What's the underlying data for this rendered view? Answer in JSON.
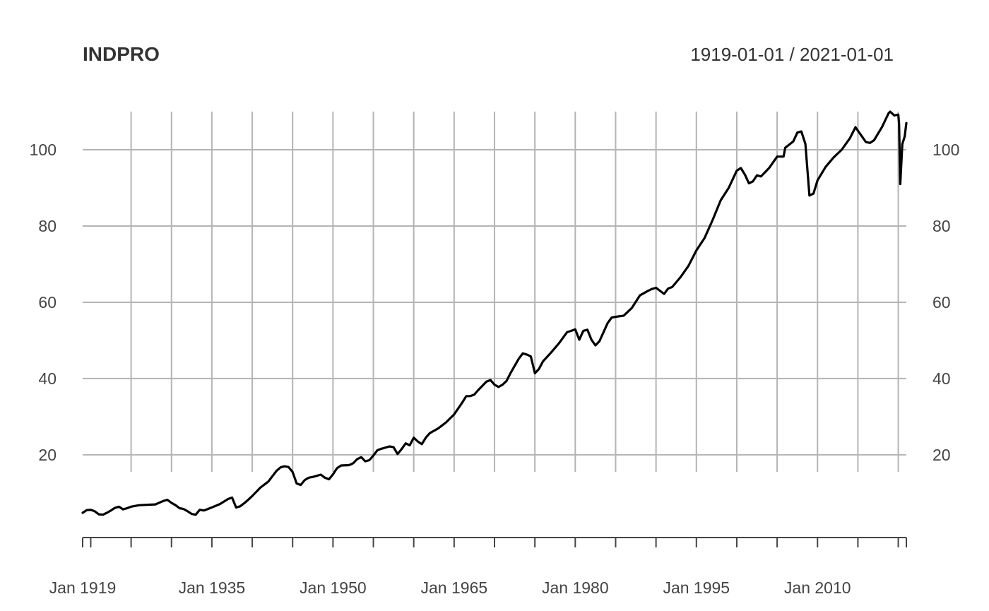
{
  "chart_data": {
    "type": "line",
    "title": "INDPRO",
    "date_range_label": "1919-01-01 / 2021-01-01",
    "x_ticks": [
      {
        "year": 1919,
        "label": "Jan 1919"
      },
      {
        "year": 1935,
        "label": "Jan 1935"
      },
      {
        "year": 1950,
        "label": "Jan 1950"
      },
      {
        "year": 1965,
        "label": "Jan 1965"
      },
      {
        "year": 1980,
        "label": "Jan 1980"
      },
      {
        "year": 1995,
        "label": "Jan 1995"
      },
      {
        "year": 2010,
        "label": "Jan 2010"
      }
    ],
    "x_gridlines": [
      1925,
      1930,
      1935,
      1940,
      1945,
      1950,
      1955,
      1960,
      1965,
      1970,
      1975,
      1980,
      1985,
      1990,
      1995,
      2000,
      2005,
      2010,
      2015,
      2020
    ],
    "x_minor_ticks": [
      1920
    ],
    "xlim": [
      1919,
      2021
    ],
    "y_ticks": [
      20,
      40,
      60,
      80,
      100
    ],
    "ylim": [
      -1.5,
      110
    ],
    "grid": true,
    "series": [
      {
        "points": [
          [
            1919.0,
            4.8
          ],
          [
            1919.5,
            5.5
          ],
          [
            1920.0,
            5.6
          ],
          [
            1920.5,
            5.2
          ],
          [
            1921.0,
            4.4
          ],
          [
            1921.5,
            4.3
          ],
          [
            1922.0,
            4.8
          ],
          [
            1922.5,
            5.4
          ],
          [
            1923.0,
            6.1
          ],
          [
            1923.5,
            6.4
          ],
          [
            1924.0,
            5.7
          ],
          [
            1924.5,
            6.0
          ],
          [
            1925.0,
            6.4
          ],
          [
            1926.0,
            6.8
          ],
          [
            1927.0,
            6.9
          ],
          [
            1928.0,
            7.0
          ],
          [
            1929.0,
            7.9
          ],
          [
            1929.5,
            8.2
          ],
          [
            1930.0,
            7.4
          ],
          [
            1930.5,
            6.8
          ],
          [
            1931.0,
            6.0
          ],
          [
            1931.5,
            5.8
          ],
          [
            1932.0,
            5.2
          ],
          [
            1932.5,
            4.5
          ],
          [
            1933.0,
            4.3
          ],
          [
            1933.5,
            5.6
          ],
          [
            1934.0,
            5.4
          ],
          [
            1934.5,
            5.8
          ],
          [
            1935.0,
            6.2
          ],
          [
            1936.0,
            7.1
          ],
          [
            1937.0,
            8.4
          ],
          [
            1937.5,
            8.8
          ],
          [
            1938.0,
            6.2
          ],
          [
            1938.5,
            6.5
          ],
          [
            1939.0,
            7.3
          ],
          [
            1939.5,
            8.2
          ],
          [
            1940.0,
            9.2
          ],
          [
            1941.0,
            11.4
          ],
          [
            1942.0,
            13.0
          ],
          [
            1943.0,
            15.8
          ],
          [
            1943.5,
            16.7
          ],
          [
            1944.0,
            17.0
          ],
          [
            1944.5,
            16.8
          ],
          [
            1945.0,
            15.5
          ],
          [
            1945.5,
            12.5
          ],
          [
            1946.0,
            12.1
          ],
          [
            1946.5,
            13.4
          ],
          [
            1947.0,
            14.0
          ],
          [
            1947.5,
            14.2
          ],
          [
            1948.0,
            14.5
          ],
          [
            1948.5,
            14.8
          ],
          [
            1949.0,
            14.0
          ],
          [
            1949.5,
            13.6
          ],
          [
            1950.0,
            14.9
          ],
          [
            1950.5,
            16.5
          ],
          [
            1951.0,
            17.2
          ],
          [
            1952.0,
            17.3
          ],
          [
            1952.5,
            17.8
          ],
          [
            1953.0,
            18.9
          ],
          [
            1953.5,
            19.4
          ],
          [
            1954.0,
            18.3
          ],
          [
            1954.5,
            18.6
          ],
          [
            1955.0,
            19.8
          ],
          [
            1955.5,
            21.2
          ],
          [
            1956.0,
            21.6
          ],
          [
            1957.0,
            22.2
          ],
          [
            1957.5,
            22.0
          ],
          [
            1958.0,
            20.2
          ],
          [
            1958.5,
            21.5
          ],
          [
            1959.0,
            23.0
          ],
          [
            1959.5,
            22.5
          ],
          [
            1960.0,
            24.5
          ],
          [
            1960.5,
            23.5
          ],
          [
            1961.0,
            22.8
          ],
          [
            1961.5,
            24.5
          ],
          [
            1962.0,
            25.7
          ],
          [
            1963.0,
            26.9
          ],
          [
            1964.0,
            28.5
          ],
          [
            1965.0,
            30.6
          ],
          [
            1966.0,
            33.7
          ],
          [
            1966.5,
            35.4
          ],
          [
            1967.0,
            35.4
          ],
          [
            1967.5,
            35.8
          ],
          [
            1968.0,
            37.0
          ],
          [
            1969.0,
            39.2
          ],
          [
            1969.5,
            39.6
          ],
          [
            1970.0,
            38.4
          ],
          [
            1970.5,
            37.8
          ],
          [
            1971.0,
            38.4
          ],
          [
            1971.5,
            39.4
          ],
          [
            1972.0,
            41.5
          ],
          [
            1973.0,
            45.2
          ],
          [
            1973.5,
            46.6
          ],
          [
            1974.0,
            46.3
          ],
          [
            1974.5,
            45.8
          ],
          [
            1975.0,
            41.4
          ],
          [
            1975.5,
            42.5
          ],
          [
            1976.0,
            44.5
          ],
          [
            1977.0,
            46.8
          ],
          [
            1978.0,
            49.3
          ],
          [
            1979.0,
            52.2
          ],
          [
            1979.5,
            52.5
          ],
          [
            1980.0,
            52.9
          ],
          [
            1980.5,
            50.2
          ],
          [
            1981.0,
            52.5
          ],
          [
            1981.5,
            52.8
          ],
          [
            1982.0,
            50.2
          ],
          [
            1982.5,
            48.7
          ],
          [
            1983.0,
            49.8
          ],
          [
            1984.0,
            54.5
          ],
          [
            1984.5,
            56.0
          ],
          [
            1985.0,
            56.2
          ],
          [
            1986.0,
            56.5
          ],
          [
            1987.0,
            58.5
          ],
          [
            1988.0,
            61.8
          ],
          [
            1989.0,
            63.0
          ],
          [
            1989.5,
            63.5
          ],
          [
            1990.0,
            63.8
          ],
          [
            1991.0,
            62.2
          ],
          [
            1991.5,
            63.6
          ],
          [
            1992.0,
            64.0
          ],
          [
            1993.0,
            66.5
          ],
          [
            1994.0,
            69.5
          ],
          [
            1995.0,
            73.6
          ],
          [
            1996.0,
            76.8
          ],
          [
            1997.0,
            81.5
          ],
          [
            1998.0,
            86.7
          ],
          [
            1999.0,
            90.0
          ],
          [
            2000.0,
            94.5
          ],
          [
            2000.5,
            95.2
          ],
          [
            2001.0,
            93.5
          ],
          [
            2001.5,
            91.2
          ],
          [
            2002.0,
            91.7
          ],
          [
            2002.5,
            93.3
          ],
          [
            2003.0,
            93.0
          ],
          [
            2004.0,
            95.2
          ],
          [
            2005.0,
            98.2
          ],
          [
            2005.8,
            98.2
          ],
          [
            2006.0,
            100.5
          ],
          [
            2007.0,
            102.2
          ],
          [
            2007.5,
            104.5
          ],
          [
            2008.0,
            104.8
          ],
          [
            2008.5,
            101.5
          ],
          [
            2009.0,
            88.0
          ],
          [
            2009.5,
            88.5
          ],
          [
            2010.0,
            92.0
          ],
          [
            2011.0,
            95.5
          ],
          [
            2012.0,
            98.0
          ],
          [
            2013.0,
            100.0
          ],
          [
            2014.0,
            103.0
          ],
          [
            2014.7,
            105.9
          ],
          [
            2015.0,
            105.0
          ],
          [
            2015.5,
            103.5
          ],
          [
            2016.0,
            102.0
          ],
          [
            2016.5,
            101.8
          ],
          [
            2017.0,
            102.5
          ],
          [
            2018.0,
            106.0
          ],
          [
            2018.8,
            109.6
          ],
          [
            2019.0,
            110.0
          ],
          [
            2019.5,
            109.0
          ],
          [
            2020.0,
            109.2
          ],
          [
            2020.1,
            106.8
          ],
          [
            2020.25,
            91.0
          ],
          [
            2020.5,
            101.5
          ],
          [
            2020.8,
            103.5
          ],
          [
            2021.0,
            107.0
          ]
        ]
      }
    ]
  }
}
